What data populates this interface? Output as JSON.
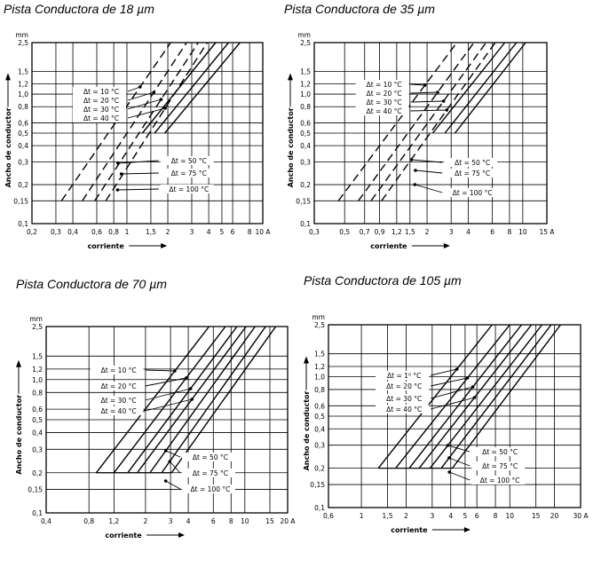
{
  "panels": [
    {
      "title": "Pista Conductora de 18 µm"
    },
    {
      "title": "Pista Conductora de 35 µm"
    },
    {
      "title": "Pista Conductora de 70 µm"
    },
    {
      "title": "Pista Conductora de 105  µm"
    }
  ],
  "chart_data": [
    {
      "type": "line",
      "title": "Pista Conductora de 18 µm",
      "xlabel": "corriente",
      "ylabel": "Ancho de conductor",
      "yunit": "mm",
      "x_scale": "log",
      "y_scale": "log",
      "xlim": [
        0.2,
        10
      ],
      "ylim": [
        0.1,
        2.5
      ],
      "xticks": [
        0.2,
        0.3,
        0.4,
        0.6,
        0.8,
        1,
        1.5,
        2,
        3,
        4,
        5,
        6,
        8,
        10
      ],
      "xticklabels": [
        "0,2",
        "0,3",
        "0,4",
        "0,6",
        "0,8",
        "1",
        "1,5",
        "2",
        "3",
        "4",
        "5",
        "6",
        "8",
        "10 A"
      ],
      "yticks": [
        0.1,
        0.15,
        0.2,
        0.3,
        0.4,
        0.5,
        0.6,
        0.8,
        1.0,
        1.2,
        1.5,
        2.5
      ],
      "yticklabels": [
        "0,1",
        "0,15",
        "0,2",
        "0,3",
        "0,4",
        "0,5",
        "0,6",
        "0,8",
        "1,0",
        "1,2",
        "1,5",
        "2,5"
      ],
      "grid": true,
      "series": [
        {
          "name": "Δt = 10 °C",
          "style": "dashed",
          "x": [
            0.33,
            2.1
          ],
          "y": [
            0.15,
            2.5
          ]
        },
        {
          "name": "Δt = 20 °C",
          "style": "dashed",
          "x": [
            0.47,
            2.75
          ],
          "y": [
            0.15,
            2.5
          ]
        },
        {
          "name": "Δt = 30 °C",
          "style": "dashed",
          "x": [
            0.58,
            3.35
          ],
          "y": [
            0.15,
            2.5
          ]
        },
        {
          "name": "Δt = 40 °C",
          "style": "dashed",
          "x": [
            0.7,
            3.9
          ],
          "y": [
            0.15,
            2.5
          ]
        },
        {
          "name": "Δt = 50 °C",
          "style": "solid",
          "x": [
            1.3,
            4.5
          ],
          "y": [
            0.5,
            2.5
          ]
        },
        {
          "name": "Δt = 75 °C",
          "style": "solid",
          "x": [
            1.6,
            5.6
          ],
          "y": [
            0.5,
            2.5
          ]
        },
        {
          "name": "Δt = 100 °C",
          "style": "solid",
          "x": [
            1.9,
            6.8
          ],
          "y": [
            0.5,
            2.5
          ]
        }
      ]
    },
    {
      "type": "line",
      "title": "Pista Conductora de 35 µm",
      "xlabel": "corriente",
      "ylabel": "Ancho de conductor",
      "yunit": "mm",
      "x_scale": "log",
      "y_scale": "log",
      "xlim": [
        0.3,
        15
      ],
      "ylim": [
        0.1,
        2.5
      ],
      "xticks": [
        0.3,
        0.5,
        0.7,
        0.9,
        1.2,
        1.5,
        2,
        3,
        4,
        6,
        8,
        10,
        15
      ],
      "xticklabels": [
        "0,3",
        "0,5",
        "0,7",
        "0,9",
        "1,2",
        "1,5",
        "2",
        "3",
        "4",
        "6",
        "8",
        "10",
        "15  A"
      ],
      "yticks": [
        0.1,
        0.15,
        0.2,
        0.3,
        0.4,
        0.5,
        0.6,
        0.8,
        1.0,
        1.2,
        1.5,
        2.5
      ],
      "yticklabels": [
        "0,1",
        "0,15",
        "0,2",
        "0,3",
        "0,4",
        "0,5",
        "0,6",
        "0,8",
        "1,0",
        "1,2",
        "1,5",
        "2,5"
      ],
      "grid": true,
      "series": [
        {
          "name": "Δt = 10 °C",
          "style": "dashed",
          "x": [
            0.45,
            3.3
          ],
          "y": [
            0.15,
            2.5
          ]
        },
        {
          "name": "Δt = 20 °C",
          "style": "dashed",
          "x": [
            0.63,
            4.4
          ],
          "y": [
            0.15,
            2.5
          ]
        },
        {
          "name": "Δt = 30 °C",
          "style": "dashed",
          "x": [
            0.78,
            5.4
          ],
          "y": [
            0.15,
            2.5
          ]
        },
        {
          "name": "Δt = 40 °C",
          "style": "dashed",
          "x": [
            0.93,
            6.3
          ],
          "y": [
            0.15,
            2.5
          ]
        },
        {
          "name": "Δt = 50 °C",
          "style": "solid",
          "x": [
            2.2,
            7.4
          ],
          "y": [
            0.5,
            2.5
          ]
        },
        {
          "name": "Δt = 75 °C",
          "style": "solid",
          "x": [
            2.7,
            9.0
          ],
          "y": [
            0.5,
            2.5
          ]
        },
        {
          "name": "Δt = 100 °C",
          "style": "solid",
          "x": [
            3.2,
            10.5
          ],
          "y": [
            0.5,
            2.5
          ]
        }
      ]
    },
    {
      "type": "line",
      "title": "Pista Conductora de 70 µm",
      "xlabel": "corriente",
      "ylabel": "Ancho de conductor",
      "yunit": "mm",
      "x_scale": "log",
      "y_scale": "log",
      "xlim": [
        0.4,
        20
      ],
      "ylim": [
        0.1,
        2.5
      ],
      "xticks": [
        0.4,
        0.8,
        1.2,
        2,
        3,
        4,
        6,
        8,
        10,
        15,
        20
      ],
      "xticklabels": [
        "0,4",
        "0,8",
        "1,2",
        "2",
        "3",
        "4",
        "6",
        "8",
        "10",
        "15",
        "20 A"
      ],
      "yticks": [
        0.1,
        0.15,
        0.2,
        0.3,
        0.4,
        0.5,
        0.6,
        0.8,
        1.0,
        1.2,
        1.5,
        2.5
      ],
      "yticklabels": [
        "0,1",
        "0,15",
        "0,2",
        "0,3",
        "0,4",
        "0,5",
        "0,6",
        "0,8",
        "1,0",
        "1,2",
        "1,5",
        "2,5"
      ],
      "grid": true,
      "series": [
        {
          "name": "Δt = 10 °C",
          "style": "solid",
          "x": [
            0.9,
            5.6
          ],
          "y": [
            0.2,
            2.5
          ]
        },
        {
          "name": "Δt = 20 °C",
          "style": "solid",
          "x": [
            1.2,
            7.3
          ],
          "y": [
            0.2,
            2.5
          ]
        },
        {
          "name": "Δt = 30 °C",
          "style": "solid",
          "x": [
            1.5,
            8.8
          ],
          "y": [
            0.2,
            2.5
          ]
        },
        {
          "name": "Δt = 40 °C",
          "style": "solid",
          "x": [
            1.75,
            10.2
          ],
          "y": [
            0.2,
            2.5
          ]
        },
        {
          "name": "Δt = 50 °C",
          "style": "solid",
          "x": [
            2.15,
            11.8
          ],
          "y": [
            0.2,
            2.5
          ]
        },
        {
          "name": "Δt = 75 °C",
          "style": "solid",
          "x": [
            2.6,
            14.0
          ],
          "y": [
            0.2,
            2.5
          ]
        },
        {
          "name": "Δt = 100 °C",
          "style": "solid",
          "x": [
            3.05,
            16.5
          ],
          "y": [
            0.2,
            2.5
          ]
        }
      ]
    },
    {
      "type": "line",
      "title": "Pista Conductora de 105  µm",
      "xlabel": "corriente",
      "ylabel": "Ancho de conductor",
      "yunit": "mm",
      "x_scale": "log",
      "y_scale": "log",
      "xlim": [
        0.6,
        30
      ],
      "ylim": [
        0.1,
        2.5
      ],
      "xticks": [
        0.6,
        1,
        1.5,
        2,
        3,
        4,
        5,
        6,
        8,
        10,
        15,
        20,
        30
      ],
      "xticklabels": [
        "0,6",
        "1",
        "1,5",
        "2",
        "3",
        "4",
        "5",
        "6",
        "8",
        "10",
        "15",
        "20",
        "30 A"
      ],
      "yticks": [
        0.1,
        0.15,
        0.2,
        0.3,
        0.4,
        0.5,
        0.6,
        0.8,
        1.0,
        1.2,
        1.5,
        2.5
      ],
      "yticklabels": [
        "0,1",
        "0,15",
        "0,2",
        "0,3",
        "0,4",
        "0,5",
        "0,6",
        "0,8",
        "1,0",
        "1,2",
        "1,5",
        "2,5"
      ],
      "grid": true,
      "series": [
        {
          "name": "Δt = 1⁰ °C",
          "style": "solid",
          "x": [
            1.3,
            7.6
          ],
          "y": [
            0.2,
            2.5
          ]
        },
        {
          "name": "Δt = 20 °C",
          "style": "solid",
          "x": [
            1.7,
            10.0
          ],
          "y": [
            0.2,
            2.5
          ]
        },
        {
          "name": "Δt = 30 °C",
          "style": "solid",
          "x": [
            2.1,
            12.0
          ],
          "y": [
            0.2,
            2.5
          ]
        },
        {
          "name": "Δt = 40 °C",
          "style": "solid",
          "x": [
            2.45,
            14.0
          ],
          "y": [
            0.2,
            2.5
          ]
        },
        {
          "name": "Δt = 50 °C",
          "style": "solid",
          "x": [
            2.9,
            16.5
          ],
          "y": [
            0.2,
            2.5
          ]
        },
        {
          "name": "Δt = 75 °C",
          "style": "solid",
          "x": [
            3.45,
            19.0
          ],
          "y": [
            0.2,
            2.5
          ]
        },
        {
          "name": "Δt = 100 °C",
          "style": "solid",
          "x": [
            4.1,
            22.0
          ],
          "y": [
            0.2,
            2.5
          ]
        }
      ]
    }
  ]
}
